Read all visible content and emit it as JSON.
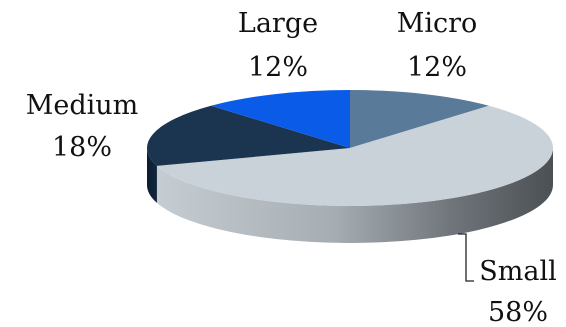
{
  "chart_data": {
    "type": "pie",
    "style": "3d",
    "title": "",
    "legend": "none",
    "slices": [
      {
        "name": "Micro",
        "label": "Micro",
        "value": 12,
        "value_label": "12%",
        "color": "#5a7a99"
      },
      {
        "name": "Small",
        "label": "Small",
        "value": 58,
        "value_label": "58%",
        "color": "#c9d2d9"
      },
      {
        "name": "Medium",
        "label": "Medium",
        "value": 18,
        "value_label": "18%",
        "color": "#1b3550"
      },
      {
        "name": "Large",
        "label": "Large",
        "value": 12,
        "value_label": "12%",
        "color": "#0a5ce8"
      }
    ]
  }
}
